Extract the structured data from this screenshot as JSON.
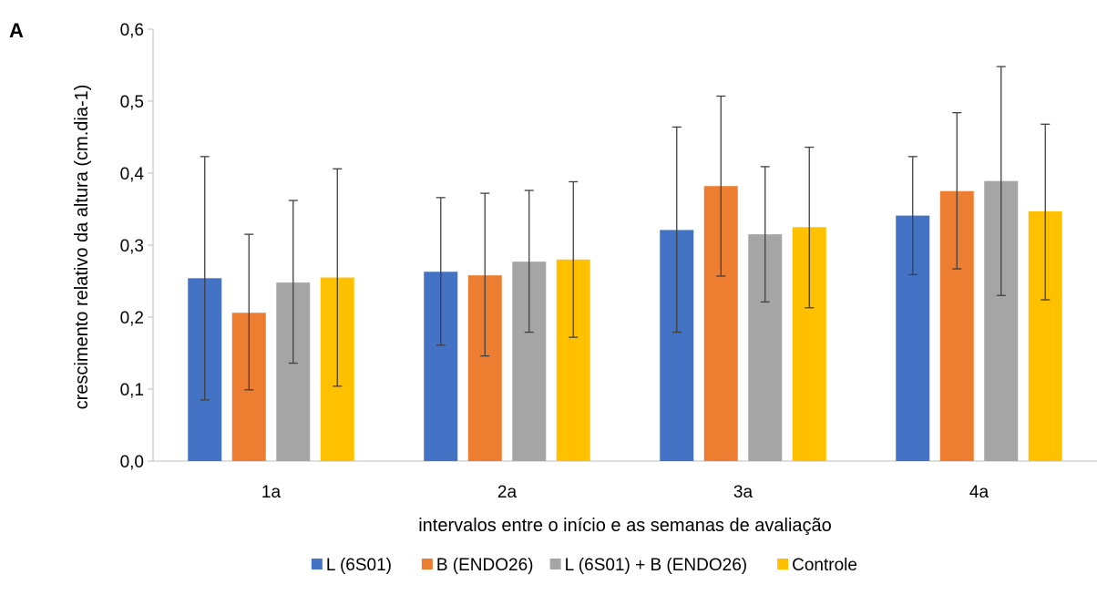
{
  "panel_label": "A",
  "chart_data": {
    "type": "bar",
    "xlabel": "intervalos entre o início e as semanas de avaliação",
    "ylabel": "crescimento relativo da altura (cm.dia-1)",
    "ylim": [
      0,
      0.6
    ],
    "yticks": [
      "0,0",
      "0,1",
      "0,2",
      "0,3",
      "0,4",
      "0,5",
      "0,6"
    ],
    "categories": [
      "1a",
      "2a",
      "3a",
      "4a"
    ],
    "grid": false,
    "legend_position": "bottom",
    "error_bars": true,
    "series": [
      {
        "name": "L (6S01)",
        "color": "#4472C4",
        "values": [
          0.254,
          0.263,
          0.321,
          0.341
        ],
        "err_low": [
          0.085,
          0.161,
          0.179,
          0.259
        ],
        "err_high": [
          0.423,
          0.366,
          0.464,
          0.423
        ]
      },
      {
        "name": "B (ENDO26)",
        "color": "#ED7D31",
        "values": [
          0.206,
          0.258,
          0.382,
          0.375
        ],
        "err_low": [
          0.099,
          0.146,
          0.257,
          0.267
        ],
        "err_high": [
          0.315,
          0.372,
          0.507,
          0.484
        ]
      },
      {
        "name": "L (6S01) + B (ENDO26)",
        "color": "#A5A5A5",
        "values": [
          0.248,
          0.277,
          0.315,
          0.389
        ],
        "err_low": [
          0.136,
          0.179,
          0.221,
          0.23
        ],
        "err_high": [
          0.362,
          0.376,
          0.409,
          0.548
        ]
      },
      {
        "name": "Controle",
        "color": "#FFC000",
        "values": [
          0.255,
          0.28,
          0.325,
          0.347
        ],
        "err_low": [
          0.104,
          0.172,
          0.213,
          0.224
        ],
        "err_high": [
          0.406,
          0.388,
          0.436,
          0.468
        ]
      }
    ]
  }
}
